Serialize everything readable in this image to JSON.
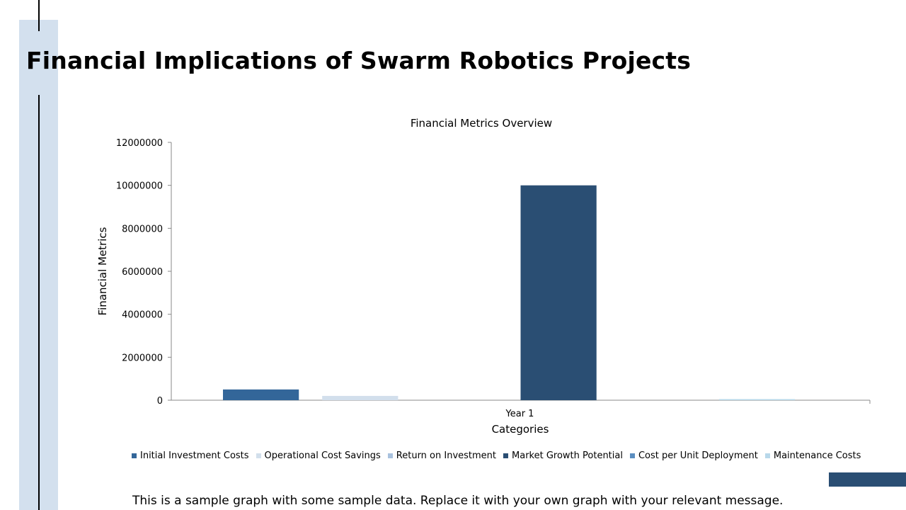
{
  "slide": {
    "title": "Financial Implications of Swarm Robotics Projects",
    "note": "This is a sample graph with some sample data. Replace it with your own graph with your relevant message.",
    "accent_colors": {
      "side_band": "#d3e0ee",
      "corner_bar": "#2a4e73"
    }
  },
  "chart_data": {
    "type": "bar",
    "title": "Financial Metrics Overview",
    "xlabel": "Categories",
    "ylabel": "Financial Metrics",
    "categories": [
      "Year 1"
    ],
    "ylim": [
      0,
      12000000
    ],
    "yticks": [
      "12000000",
      "10000000",
      "8000000",
      "6000000",
      "4000000",
      "2000000",
      "0"
    ],
    "grid": false,
    "legend_position": "bottom",
    "series": [
      {
        "name": "Initial Investment Costs",
        "values": [
          500000
        ],
        "color": "#336699"
      },
      {
        "name": "Operational Cost Savings",
        "values": [
          200000
        ],
        "color": "#d2dfec"
      },
      {
        "name": "Return on Investment",
        "values": [
          0
        ],
        "color": "#a9c2de"
      },
      {
        "name": "Market Growth Potential",
        "values": [
          10000000
        ],
        "color": "#2a4e73"
      },
      {
        "name": "Cost per Unit Deployment",
        "values": [
          0
        ],
        "color": "#5b8ec0"
      },
      {
        "name": "Maintenance Costs",
        "values": [
          50000
        ],
        "color": "#b8d8ea"
      }
    ]
  }
}
